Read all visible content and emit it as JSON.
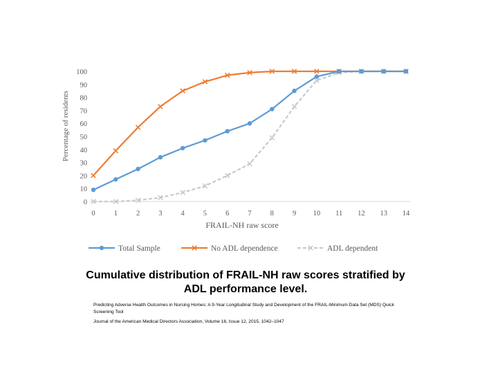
{
  "chart_data": {
    "type": "line",
    "title": "",
    "xlabel": "FRAIL-NH raw score",
    "ylabel": "Percentage of residents",
    "categories": [
      "0",
      "1",
      "2",
      "3",
      "4",
      "5",
      "6",
      "7",
      "8",
      "9",
      "10",
      "11",
      "12",
      "13",
      "14"
    ],
    "ylim": [
      0,
      100
    ],
    "yticks": [
      0,
      10,
      20,
      30,
      40,
      50,
      60,
      70,
      80,
      90,
      100
    ],
    "grid": false,
    "legend_position": "bottom",
    "series": [
      {
        "name": "Total Sample",
        "color": "#5b9bd5",
        "marker": "circle",
        "dash": "solid",
        "values": [
          9,
          17,
          25,
          34,
          41,
          47,
          54,
          60,
          71,
          85,
          96,
          100,
          100,
          100,
          100
        ]
      },
      {
        "name": "No ADL dependence",
        "color": "#ed7d31",
        "marker": "x",
        "dash": "solid",
        "values": [
          20,
          39,
          57,
          73,
          85,
          92,
          97,
          99,
          100,
          100,
          100,
          100,
          100,
          100,
          100
        ]
      },
      {
        "name": "ADL dependent",
        "color": "#c9c9c9",
        "marker": "x",
        "dash": "dashed",
        "values": [
          0,
          0,
          1,
          3,
          7,
          12,
          20,
          29,
          49,
          73,
          93,
          99,
          100,
          100,
          100
        ]
      }
    ]
  },
  "caption": "Cumulative distribution of FRAIL-NH raw scores stratified by ADL performance level.",
  "source_title": "Predicting Adverse Health Outcomes in Nursing Homes: A 9-Year Longitudinal Study and Development of the FRAIL-Minimum Data Set (MDS) Quick Screening Tool",
  "journal": "Journal of the American Medical Directors Association, Volume 16, Issue 12, 2015, 1042–1047"
}
